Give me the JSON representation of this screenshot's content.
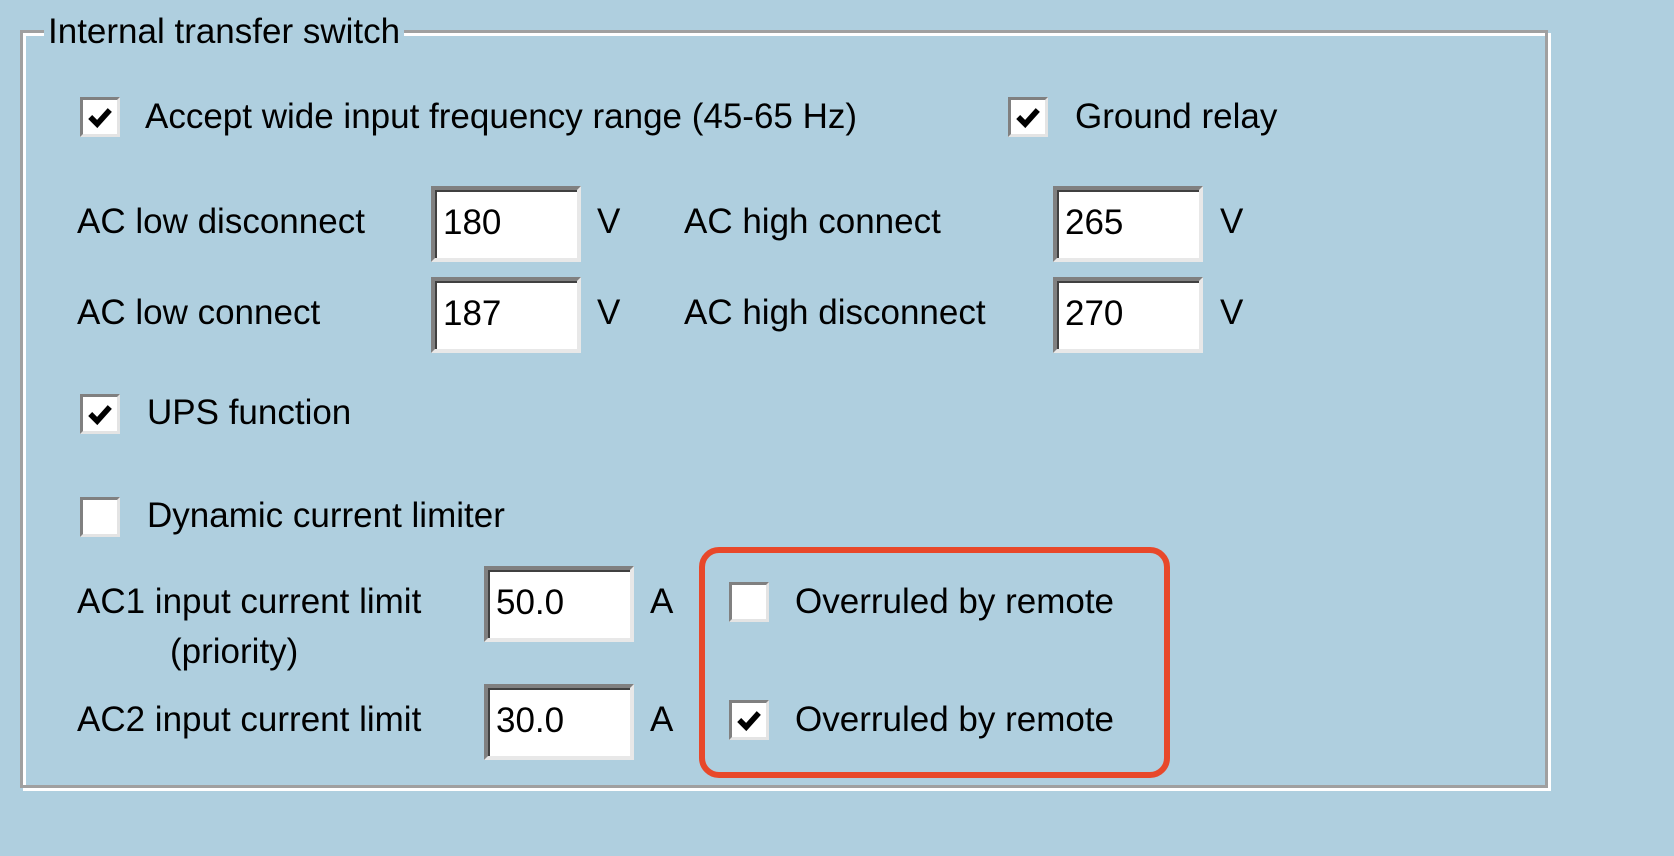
{
  "group": {
    "title": "Internal transfer switch"
  },
  "options": {
    "wide_freq": {
      "label": "Accept wide input frequency range (45-65 Hz)",
      "checked": true
    },
    "ground_relay": {
      "label": "Ground relay",
      "checked": true
    },
    "ups_function": {
      "label": "UPS function",
      "checked": true
    },
    "dynamic_limiter": {
      "label": "Dynamic current limiter",
      "checked": false
    }
  },
  "voltages": {
    "ac_low_disconnect": {
      "label": "AC low disconnect",
      "value": "180",
      "unit": "V"
    },
    "ac_low_connect": {
      "label": "AC low connect",
      "value": "187",
      "unit": "V"
    },
    "ac_high_connect": {
      "label": "AC high connect",
      "value": "265",
      "unit": "V"
    },
    "ac_high_disconnect": {
      "label": "AC high disconnect",
      "value": "270",
      "unit": "V"
    }
  },
  "currents": {
    "ac1": {
      "label": "AC1 input current limit",
      "sublabel": "(priority)",
      "value": "50.0",
      "unit": "A",
      "overrule_label": "Overruled by remote",
      "overrule_checked": false
    },
    "ac2": {
      "label": "AC2 input current limit",
      "value": "30.0",
      "unit": "A",
      "overrule_label": "Overruled by remote",
      "overrule_checked": true
    }
  },
  "colors": {
    "background": "#afcfdf",
    "highlight": "#e8482a"
  }
}
